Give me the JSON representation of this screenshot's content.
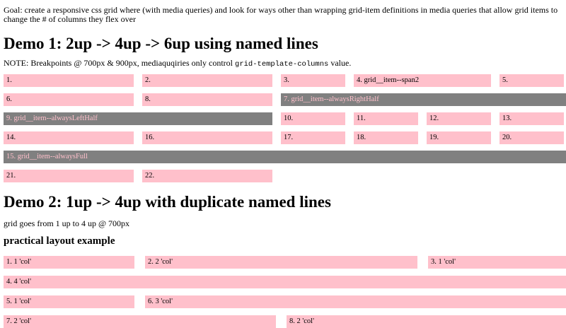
{
  "page": {
    "goal_text": "Goal: create a responsive css grid where (with media queries) and look for ways other than wrapping grid-item definitions in media queries that allow grid items to change the # of columns they flex over"
  },
  "colors": {
    "item_pink": "#ffc0cb",
    "item_gray": "#808080",
    "gray_item_text": "#ffc0cb",
    "text": "#000000"
  },
  "demo1": {
    "heading": "Demo 1: 2up -> 4up -> 6up using named lines",
    "note_prefix": "NOTE: Breakpoints @ 700px & 900px, mediaquqiries only control ",
    "note_code": "grid-template-columns",
    "note_suffix": " value.",
    "items": [
      {
        "label": "1."
      },
      {
        "label": "2."
      },
      {
        "label": "3."
      },
      {
        "label": "4. grid__item--span2"
      },
      {
        "label": "5."
      },
      {
        "label": "6."
      },
      {
        "label": "8."
      },
      {
        "label": "7. grid__item--alwaysRightHalf"
      },
      {
        "label": "9. grid__item--alwaysLeftHalf"
      },
      {
        "label": "10."
      },
      {
        "label": "11."
      },
      {
        "label": "12."
      },
      {
        "label": "13."
      },
      {
        "label": "14."
      },
      {
        "label": "16."
      },
      {
        "label": "17."
      },
      {
        "label": "18."
      },
      {
        "label": "19."
      },
      {
        "label": "20."
      },
      {
        "label": "15. grid__item--alwaysFull"
      },
      {
        "label": "21."
      },
      {
        "label": "22."
      }
    ]
  },
  "demo2": {
    "heading": "Demo 2: 1up -> 4up with duplicate named lines",
    "caption": "grid goes from 1 up to 4 up @ 700px",
    "subheading": "practical layout example",
    "items": [
      {
        "label": "1. 1 'col'"
      },
      {
        "label": "2. 2 'col'"
      },
      {
        "label": "3. 1 'col'"
      },
      {
        "label": "4. 4 'col'"
      },
      {
        "label": "5. 1 'col'"
      },
      {
        "label": "6. 3 'col'"
      },
      {
        "label": "7. 2 'col'"
      },
      {
        "label": "8. 2 'col'"
      }
    ]
  }
}
